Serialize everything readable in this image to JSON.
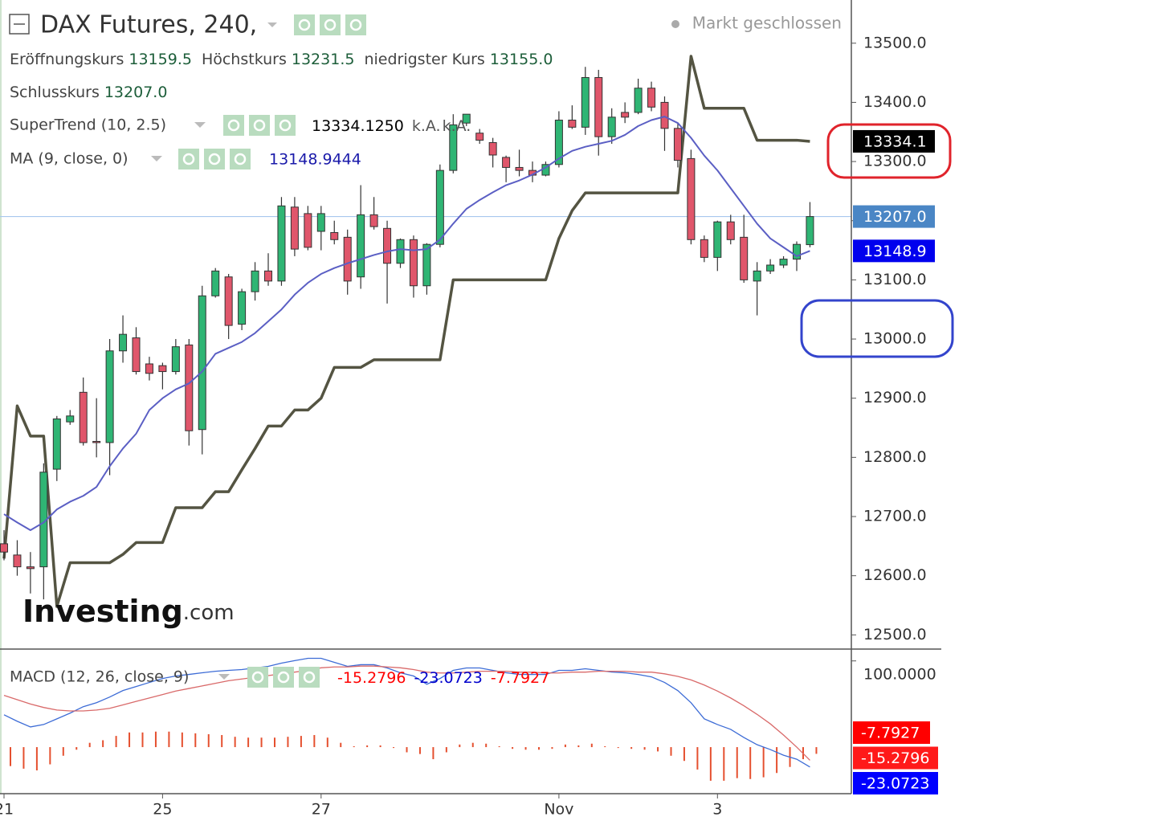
{
  "header": {
    "title": "DAX Futures, 240,",
    "status": "Markt geschlossen",
    "ohlc": [
      {
        "label": "Eröffnungskurs",
        "value": "13159.5"
      },
      {
        "label": "Höchstkurs",
        "value": "13231.5"
      },
      {
        "label": "niedrigster Kurs",
        "value": "13155.0"
      }
    ],
    "close": {
      "label": "Schlusskurs",
      "value": "13207.0"
    },
    "supertrend": {
      "label": "SuperTrend (10, 2.5)",
      "values": [
        "13334.1250",
        "k.A.",
        "k.A."
      ]
    },
    "ma": {
      "label": "MA (9, close, 0)",
      "value": "13148.9444"
    },
    "macd": {
      "label": "MACD (12, 26, close, 9)",
      "values": [
        {
          "text": "-15.2796",
          "color": "#ff0000"
        },
        {
          "text": "-23.0723",
          "color": "#0000cc"
        },
        {
          "text": "-7.7927",
          "color": "#ff0000"
        }
      ]
    },
    "logo": [
      "Investing",
      ".com"
    ]
  },
  "chart_data": [
    {
      "type": "candlestick",
      "categories": [
        "21",
        null,
        null,
        null,
        null,
        null,
        null,
        null,
        null,
        null,
        null,
        null,
        "25",
        null,
        null,
        null,
        null,
        null,
        null,
        null,
        null,
        null,
        null,
        null,
        "27",
        null,
        null,
        null,
        null,
        null,
        null,
        null,
        null,
        null,
        null,
        null,
        null,
        null,
        null,
        null,
        null,
        null,
        "Nov",
        null,
        null,
        null,
        null,
        null,
        null,
        null,
        null,
        null,
        null,
        null,
        "3",
        null,
        null,
        null,
        null,
        null,
        null,
        null
      ],
      "open": [
        12654,
        12635,
        12615,
        12615,
        12780,
        12860,
        12910,
        12827,
        12825,
        12980,
        13002,
        12958,
        12955,
        12945,
        12990,
        12847,
        13073,
        13105,
        13025,
        13080,
        13115,
        13098,
        13223,
        13212,
        13182,
        13180,
        13172,
        13105,
        13210,
        13187,
        13128,
        13168,
        13090,
        13160,
        13285,
        13365,
        13348,
        13332,
        13307,
        13290,
        13285,
        13277,
        13295,
        13370,
        13358,
        13442,
        13342,
        13383,
        13383,
        13424,
        13400,
        13356,
        13305,
        13168,
        13138,
        13198,
        13172,
        13098,
        13115,
        13125,
        13135,
        13159.5
      ],
      "high": [
        12677,
        12660,
        12640,
        12790,
        12870,
        12880,
        12935,
        12900,
        13000,
        13040,
        13020,
        12970,
        12960,
        13000,
        13000,
        13090,
        13120,
        13110,
        13085,
        13130,
        13145,
        13240,
        13240,
        13225,
        13225,
        13200,
        13185,
        13260,
        13240,
        13200,
        13170,
        13175,
        13162,
        13295,
        13380,
        13380,
        13355,
        13340,
        13310,
        13320,
        13300,
        13300,
        13385,
        13395,
        13460,
        13455,
        13390,
        13400,
        13440,
        13435,
        13410,
        13365,
        13320,
        13175,
        13200,
        13210,
        13210,
        13130,
        13135,
        13140,
        13165,
        13231.5
      ],
      "low": [
        12626,
        12600,
        12570,
        12560,
        12760,
        12855,
        12820,
        12800,
        12770,
        12960,
        12940,
        12930,
        12915,
        12940,
        12820,
        12805,
        13070,
        13000,
        13015,
        13065,
        13090,
        13090,
        13140,
        13150,
        13150,
        13160,
        13075,
        13085,
        13185,
        13060,
        13120,
        13070,
        13075,
        13155,
        13280,
        13360,
        13330,
        13290,
        13265,
        13275,
        13265,
        13275,
        13290,
        13355,
        13345,
        13310,
        13330,
        13365,
        13380,
        13385,
        13318,
        13290,
        13160,
        13130,
        13115,
        13160,
        13095,
        13040,
        13110,
        13120,
        13115,
        13155
      ],
      "close": [
        12640,
        12615,
        12612,
        12775,
        12865,
        12870,
        12825,
        12825,
        12980,
        13008,
        12945,
        12942,
        12945,
        12987,
        12845,
        13073,
        13115,
        13023,
        13080,
        13115,
        13098,
        13225,
        13152,
        13155,
        13212,
        13168,
        13098,
        13210,
        13190,
        13128,
        13168,
        13090,
        13160,
        13285,
        13362,
        13380,
        13336,
        13311,
        13290,
        13285,
        13277,
        13295,
        13370,
        13358,
        13442,
        13342,
        13375,
        13375,
        13424,
        13392,
        13356,
        13302,
        13168,
        13138,
        13198,
        13168,
        13100,
        13115,
        13125,
        13135,
        13160,
        13207
      ],
      "up_color": "#2fb574",
      "down_color": "#e0566b",
      "overlays": [
        {
          "color": "#545442",
          "width": 3.5,
          "values": [
            12629,
            12887,
            12836,
            12836,
            12548,
            12622,
            12622,
            12622,
            12622,
            12636,
            12656,
            12656,
            12656,
            12715,
            12715,
            12715,
            12742,
            12742,
            12779,
            12815,
            12853,
            12853,
            12880,
            12880,
            12900,
            12952,
            12952,
            12952,
            12965,
            12965,
            12965,
            12965,
            12965,
            12965,
            13100,
            13100,
            13100,
            13100,
            13100,
            13100,
            13100,
            13100,
            13170,
            13217,
            13247,
            13247,
            13247,
            13247,
            13247,
            13247,
            13247,
            13247,
            13478,
            13390,
            13390,
            13390,
            13390,
            13336,
            13336,
            13336,
            13336,
            13334.125
          ]
        },
        {
          "color": "#5b5fc4",
          "width": 2,
          "values": [
            12704,
            12690,
            12677,
            12690,
            12712,
            12725,
            12735,
            12750,
            12785,
            12815,
            12840,
            12880,
            12900,
            12915,
            12925,
            12945,
            12975,
            12985,
            12995,
            13010,
            13030,
            13050,
            13075,
            13095,
            13110,
            13120,
            13128,
            13135,
            13142,
            13148,
            13152,
            13150,
            13152,
            13168,
            13195,
            13220,
            13235,
            13248,
            13260,
            13268,
            13278,
            13290,
            13305,
            13318,
            13325,
            13330,
            13335,
            13345,
            13360,
            13370,
            13376,
            13365,
            13340,
            13310,
            13285,
            13255,
            13225,
            13195,
            13170,
            13155,
            13140,
            13148.9444
          ]
        }
      ],
      "ylim": [
        12476,
        13573
      ],
      "yticks": [
        {
          "value": 13500,
          "label": "13500.0"
        },
        {
          "value": 13400,
          "label": "13400.0"
        },
        {
          "value": 13300,
          "label": "13300.0"
        },
        {
          "value": 13200,
          "label": "13200.0"
        },
        {
          "value": 13100,
          "label": "13100.0"
        },
        {
          "value": 13000,
          "label": "13000.0"
        },
        {
          "value": 12900,
          "label": "12900.0"
        },
        {
          "value": 12800,
          "label": "12800.0"
        },
        {
          "value": 12700,
          "label": "12700.0"
        },
        {
          "value": 12600,
          "label": "12600.0"
        },
        {
          "value": 12500,
          "label": "12500.0"
        }
      ],
      "price_tags": [
        {
          "value": 13334.125,
          "label": "13334.1",
          "color": "#000000",
          "line": false
        },
        {
          "value": 13207,
          "label": "13207.0",
          "color": "#4a86c5",
          "line": true
        },
        {
          "value": 13148.9444,
          "label": "13148.9",
          "color": "#0000ee",
          "line": false
        }
      ]
    },
    {
      "type": "macd",
      "series": [
        {
          "color": "#3d6cd6",
          "values": [
            37.5,
            30,
            23.4,
            26.2,
            32.8,
            39.4,
            46.9,
            51.5,
            58.1,
            65.6,
            70.3,
            75,
            79.6,
            82.5,
            84.3,
            86.2,
            88,
            89,
            90,
            91.8,
            93.7,
            97.4,
            100.3,
            103,
            103,
            98.4,
            93.7,
            95.6,
            95.6,
            91.8,
            86.2,
            82.5,
            73,
            79.6,
            89,
            91.8,
            91.8,
            89,
            86.2,
            84.3,
            84.3,
            84.3,
            89,
            89,
            90.9,
            89,
            87.1,
            86.2,
            84.3,
            81.5,
            75,
            65.6,
            51.5,
            32.8,
            26.2,
            20.6,
            11.2,
            2.8,
            -2.8,
            -9.4,
            -14,
            -23.0723
          ]
        },
        {
          "color": "#d96a6a",
          "values": [
            60,
            55,
            50,
            46,
            43,
            42,
            42,
            43,
            45,
            49,
            53,
            57,
            61,
            65,
            68,
            71,
            74,
            77,
            79,
            81,
            83,
            85,
            87,
            89,
            92,
            93,
            93,
            94,
            94,
            93,
            92,
            90,
            87,
            86,
            86,
            87,
            88,
            88,
            88,
            87,
            87,
            86,
            86,
            87,
            87,
            88,
            88,
            88,
            87,
            87,
            85,
            82,
            78,
            72,
            65,
            57,
            48,
            38,
            27,
            14,
            0,
            -15.2796
          ]
        }
      ],
      "histogram": {
        "color": "#e5502f",
        "values": [
          -22,
          -25,
          -27,
          -20,
          -10,
          -3,
          5,
          8,
          13,
          17,
          17,
          18,
          18,
          17,
          16,
          15,
          14,
          12,
          11,
          11,
          11,
          12,
          13,
          14,
          11,
          5,
          1,
          2,
          2,
          -1,
          -6,
          -8,
          -14,
          -6,
          3,
          5,
          4,
          1,
          -2,
          -3,
          -3,
          -2,
          3,
          2,
          4,
          1,
          -1,
          -2,
          -3,
          -5,
          -10,
          -16,
          -26,
          -39,
          -39,
          -36,
          -37,
          -35,
          -30,
          -23,
          -14,
          -7.7927
        ]
      },
      "ylim": [
        -54,
        110
      ],
      "yticks": [
        {
          "value": 100,
          "label": "100.0000"
        }
      ],
      "tags": [
        {
          "value": -7.7927,
          "color": "#ff0000"
        },
        {
          "value": -15.2796,
          "color": "#ff1a1a"
        },
        {
          "value": -23.0723,
          "color": "#0000ff"
        }
      ]
    }
  ]
}
